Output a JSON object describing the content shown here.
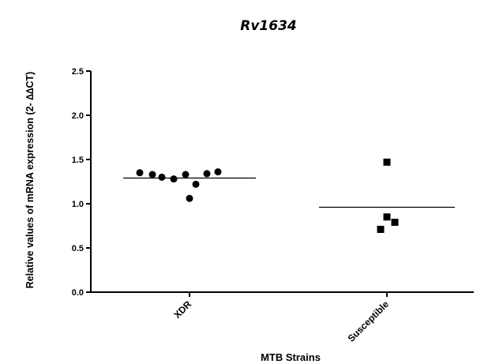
{
  "chart_data": {
    "type": "scatter",
    "title": "Rv1634",
    "xlabel": "MTB Strains",
    "ylabel": "Relative values of mRNA expression (2- ∆∆CT)",
    "ylim": [
      0,
      2.5
    ],
    "yticks": [
      "0.0",
      "0.5",
      "1.0",
      "1.5",
      "2.0",
      "2.5"
    ],
    "grid": false,
    "categories": [
      "XDR",
      "Susceptible"
    ],
    "series": [
      {
        "category": "XDR",
        "marker": "circle",
        "values": [
          1.35,
          1.33,
          1.3,
          1.28,
          1.33,
          1.22,
          1.34,
          1.36,
          1.06
        ],
        "mean": 1.29
      },
      {
        "category": "Susceptible",
        "marker": "square",
        "values": [
          1.47,
          0.85,
          0.79,
          0.71
        ],
        "mean": 0.96
      }
    ]
  }
}
